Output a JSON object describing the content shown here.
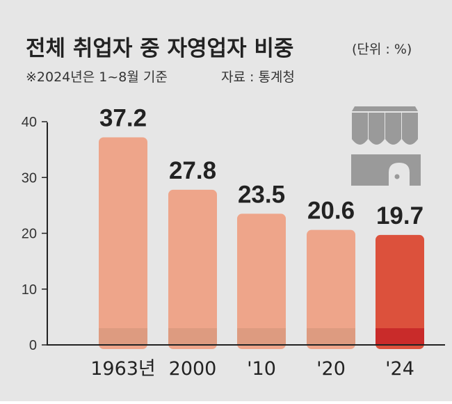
{
  "header": {
    "title": "전체 취업자 중 자영업자 비중",
    "unit": "(단위 : %)",
    "note": "※2024년은 1~8월 기준",
    "source": "자료 : 통계청"
  },
  "colors": {
    "background": "#e6e6e6",
    "bar": "#eea58a",
    "bar_highlight": "#dc513c",
    "bar_base": "#dd9b80",
    "bar_base_highlight": "#c92b2a",
    "axis": "#222222",
    "icon": "#9a9a9a"
  },
  "icon": "shop-awning-icon",
  "chart_data": {
    "type": "bar",
    "categories": [
      "1963년",
      "2000",
      "'10",
      "'20",
      "'24"
    ],
    "values": [
      37.2,
      27.8,
      23.5,
      20.6,
      19.7
    ],
    "value_labels": [
      "37.2",
      "27.8",
      "23.5",
      "20.6",
      "19.7"
    ],
    "highlight_index": 4,
    "title": "전체 취업자 중 자영업자 비중",
    "unit": "%",
    "ylim": [
      0,
      40
    ],
    "yticks": [
      0,
      10,
      20,
      30,
      40
    ],
    "grid": false,
    "legend": "none"
  }
}
